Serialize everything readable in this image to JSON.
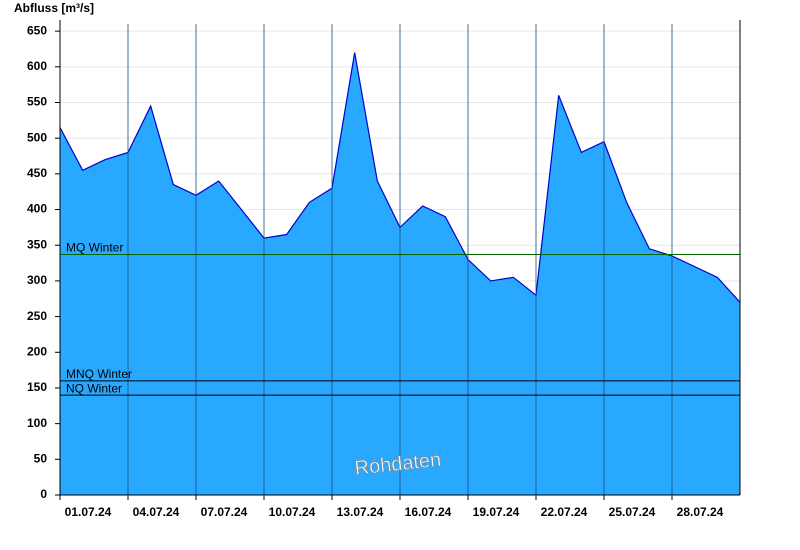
{
  "chart_data": {
    "type": "area",
    "y_label": "Abfluss [m³/s]",
    "annotation": "Rohdaten",
    "x": [
      "01.07.24",
      "02.07.24",
      "03.07.24",
      "04.07.24",
      "05.07.24",
      "06.07.24",
      "07.07.24",
      "08.07.24",
      "09.07.24",
      "10.07.24",
      "11.07.24",
      "12.07.24",
      "13.07.24",
      "14.07.24",
      "15.07.24",
      "16.07.24",
      "17.07.24",
      "18.07.24",
      "19.07.24",
      "20.07.24",
      "21.07.24",
      "22.07.24",
      "23.07.24",
      "24.07.24",
      "25.07.24",
      "26.07.24",
      "27.07.24",
      "28.07.24",
      "29.07.24",
      "30.07.24",
      "31.07.24"
    ],
    "series": [
      {
        "color": "#29a8ff",
        "line_color": "#0000cc",
        "values": [
          515,
          455,
          470,
          480,
          545,
          435,
          420,
          440,
          400,
          360,
          365,
          410,
          430,
          620,
          440,
          375,
          405,
          390,
          330,
          300,
          305,
          280,
          560,
          480,
          495,
          410,
          345,
          335,
          320,
          305,
          270
        ]
      }
    ],
    "ylim": [
      0,
      660
    ],
    "yticks": [
      0,
      50,
      100,
      150,
      200,
      250,
      300,
      350,
      400,
      450,
      500,
      550,
      600,
      650
    ],
    "xticks": [
      "01.07.24",
      "04.07.24",
      "07.07.24",
      "10.07.24",
      "13.07.24",
      "16.07.24",
      "19.07.24",
      "22.07.24",
      "25.07.24",
      "28.07.24"
    ],
    "reference_lines": [
      {
        "label": "MQ Winter",
        "value": 337,
        "color": "#006600"
      },
      {
        "label": "MNQ Winter",
        "value": 160,
        "color": "#000000"
      },
      {
        "label": "NQ Winter",
        "value": 140,
        "color": "#000000"
      }
    ],
    "grid": true
  }
}
